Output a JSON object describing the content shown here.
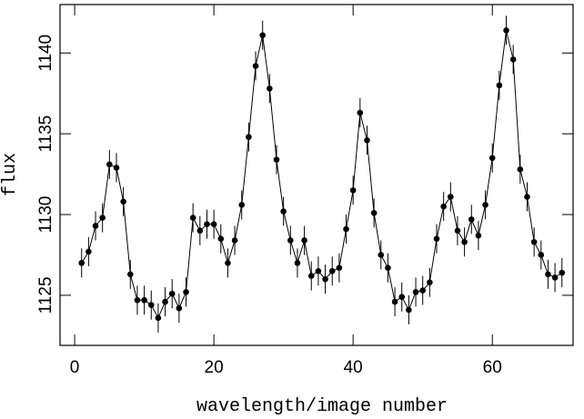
{
  "chart_data": {
    "type": "line",
    "xlabel": "wavelength/image number",
    "ylabel": "flux",
    "x": [
      1,
      2,
      3,
      4,
      5,
      6,
      7,
      8,
      9,
      10,
      11,
      12,
      13,
      14,
      15,
      16,
      17,
      18,
      19,
      20,
      21,
      22,
      23,
      24,
      25,
      26,
      27,
      28,
      29,
      30,
      31,
      32,
      33,
      34,
      35,
      36,
      37,
      38,
      39,
      40,
      41,
      42,
      43,
      44,
      45,
      46,
      47,
      48,
      49,
      50,
      51,
      52,
      53,
      54,
      55,
      56,
      57,
      58,
      59,
      60,
      61,
      62,
      63,
      64,
      65,
      66,
      67,
      68,
      69,
      70
    ],
    "values": [
      1127.0,
      1127.7,
      1129.3,
      1129.8,
      1133.1,
      1132.9,
      1130.8,
      1126.3,
      1124.7,
      1124.7,
      1124.4,
      1123.6,
      1124.6,
      1125.1,
      1124.2,
      1125.2,
      1129.8,
      1129.0,
      1129.4,
      1129.4,
      1128.5,
      1127.0,
      1128.4,
      1130.6,
      1134.8,
      1139.2,
      1141.1,
      1137.8,
      1133.4,
      1130.2,
      1128.4,
      1127.0,
      1128.4,
      1126.2,
      1126.5,
      1126.0,
      1126.5,
      1126.7,
      1129.1,
      1131.5,
      1136.3,
      1134.6,
      1130.1,
      1127.5,
      1126.7,
      1124.6,
      1124.9,
      1124.1,
      1125.2,
      1125.3,
      1125.8,
      1128.5,
      1130.5,
      1131.1,
      1129.0,
      1128.3,
      1129.7,
      1128.7,
      1130.6,
      1133.5,
      1138.0,
      1141.4,
      1139.6,
      1132.8,
      1131.1,
      1128.3,
      1127.5,
      1126.3,
      1126.1,
      1126.4
    ],
    "errors": [
      0.9,
      0.9,
      0.9,
      0.9,
      0.9,
      0.9,
      0.9,
      0.9,
      0.9,
      0.9,
      0.9,
      0.9,
      0.9,
      0.9,
      0.9,
      0.9,
      0.9,
      0.9,
      0.9,
      0.9,
      0.9,
      0.9,
      0.9,
      0.9,
      0.9,
      0.9,
      0.9,
      0.9,
      0.9,
      0.9,
      0.9,
      0.9,
      0.9,
      0.9,
      0.9,
      0.9,
      0.9,
      0.9,
      0.9,
      0.9,
      0.9,
      0.9,
      0.9,
      0.9,
      0.9,
      0.9,
      0.9,
      0.9,
      0.9,
      0.9,
      0.9,
      0.9,
      0.9,
      0.9,
      0.9,
      0.9,
      0.9,
      0.9,
      0.9,
      0.9,
      0.9,
      0.9,
      0.9,
      0.9,
      0.9,
      0.9,
      0.9,
      0.9,
      0.9,
      0.9
    ],
    "color": "#000000",
    "xlim": [
      -2.1,
      71.6
    ],
    "xticks": [
      0,
      20,
      40,
      60
    ],
    "ylim": [
      1121.9,
      1143.0
    ],
    "yticks": [
      1125,
      1130,
      1135,
      1140
    ]
  }
}
